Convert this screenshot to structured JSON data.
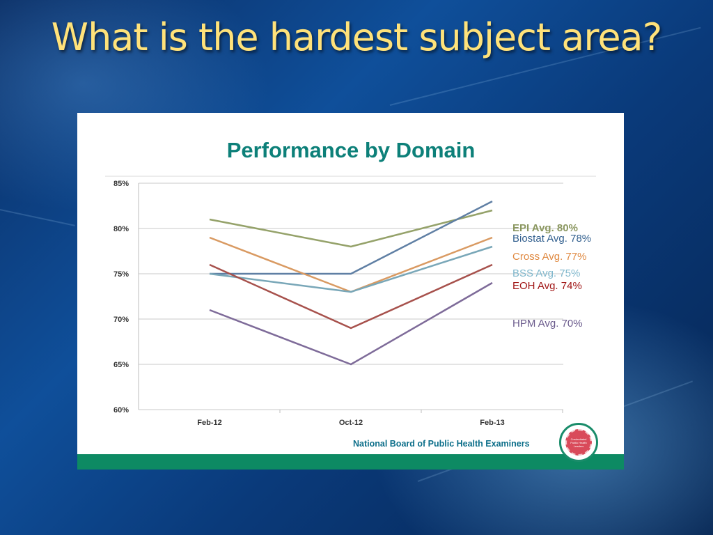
{
  "slide": {
    "title": "What is the hardest subject area?"
  },
  "footer": {
    "organization": "National Board of Public Health Examiners",
    "seal_text": "Credentialed Public Health Leaders"
  },
  "chart_data": {
    "type": "line",
    "title": "Performance by Domain",
    "categories": [
      "Feb-12",
      "Oct-12",
      "Feb-13"
    ],
    "y_ticks": [
      "60%",
      "65%",
      "70%",
      "75%",
      "80%",
      "85%"
    ],
    "ylim": [
      60,
      85
    ],
    "grid": true,
    "legend_placement": "right",
    "series": [
      {
        "name": "EPI Avg. 80%",
        "values": [
          81,
          78,
          82
        ],
        "color": "#95a26a"
      },
      {
        "name": "Biostat Avg. 78%",
        "values": [
          75,
          75,
          83
        ],
        "color": "#5f7fa4"
      },
      {
        "name": "Cross Avg. 77%",
        "values": [
          79,
          73,
          79
        ],
        "color": "#d99a62"
      },
      {
        "name": "BSS Avg. 75%",
        "values": [
          75,
          73,
          78
        ],
        "color": "#79a7b8"
      },
      {
        "name": "EOH Avg. 74%",
        "values": [
          76,
          69,
          76
        ],
        "color": "#a7514c"
      },
      {
        "name": "HPM Avg. 70%",
        "values": [
          71,
          65,
          74
        ],
        "color": "#7e6b99"
      }
    ],
    "label_colors": [
      "#8b9760",
      "#33608f",
      "#e08a42",
      "#7fb7cc",
      "#a11616",
      "#6a5a8c"
    ]
  }
}
